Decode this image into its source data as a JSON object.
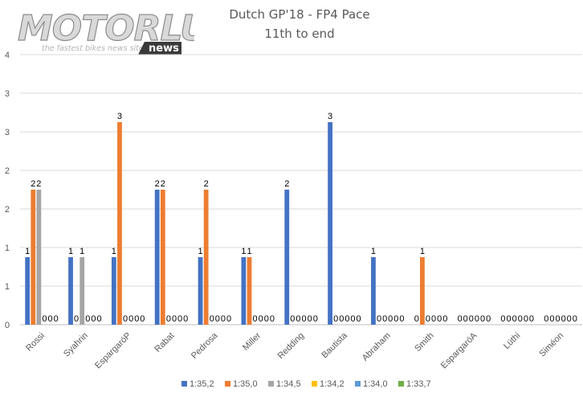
{
  "logo": {
    "text": "MOTORLU",
    "tagline": "the fastest bikes news site",
    "badge": "news"
  },
  "chart_data": {
    "type": "bar",
    "title": "Dutch GP'18 - FP4 Pace",
    "subtitle": "11th to end",
    "xlabel": "",
    "ylabel": "",
    "ylim": [
      0,
      4
    ],
    "y_tick_labels": [
      "0",
      "1",
      "1",
      "2",
      "2",
      "3",
      "3",
      "4"
    ],
    "grid": true,
    "legend_position": "bottom",
    "categories": [
      "Rossi",
      "Syahrin",
      "EspargaróP",
      "Rabat",
      "Pedrosa",
      "Miller",
      "Redding",
      "Bautista",
      "Abraham",
      "Smith",
      "EspargaróA",
      "Lüthi",
      "Siméon"
    ],
    "series": [
      {
        "name": "1:35,2",
        "color": "#4472c4",
        "values": [
          1,
          1,
          1,
          2,
          1,
          1,
          2,
          3,
          1,
          0,
          0,
          0,
          0
        ]
      },
      {
        "name": "1:35,0",
        "color": "#ed7d31",
        "values": [
          2,
          0,
          3,
          2,
          2,
          1,
          0,
          0,
          0,
          1,
          0,
          0,
          0
        ]
      },
      {
        "name": "1:34,5",
        "color": "#a5a5a5",
        "values": [
          2,
          1,
          0,
          0,
          0,
          0,
          0,
          0,
          0,
          0,
          0,
          0,
          0
        ]
      },
      {
        "name": "1:34,2",
        "color": "#ffc000",
        "values": [
          0,
          0,
          0,
          0,
          0,
          0,
          0,
          0,
          0,
          0,
          0,
          0,
          0
        ]
      },
      {
        "name": "1:34,0",
        "color": "#5b9bd5",
        "values": [
          0,
          0,
          0,
          0,
          0,
          0,
          0,
          0,
          0,
          0,
          0,
          0,
          0
        ]
      },
      {
        "name": "1:33,7",
        "color": "#70ad47",
        "values": [
          0,
          0,
          0,
          0,
          0,
          0,
          0,
          0,
          0,
          0,
          0,
          0,
          0
        ]
      }
    ]
  }
}
